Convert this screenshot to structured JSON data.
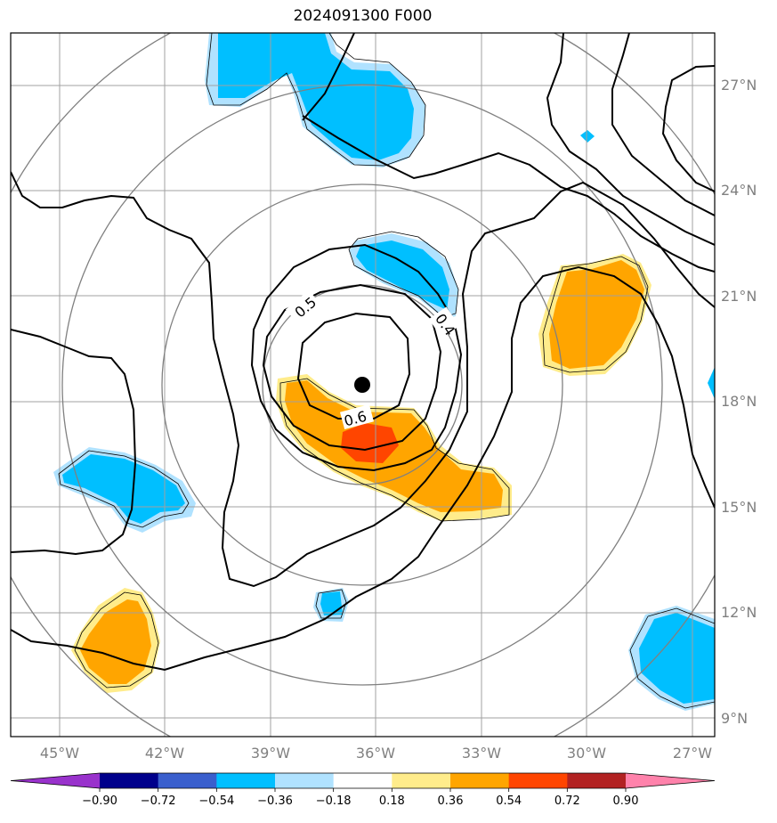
{
  "title": "2024091300 F000",
  "map": {
    "lat_labels": [
      "27°N",
      "24°N",
      "21°N",
      "18°N",
      "15°N",
      "12°N",
      "9°N"
    ],
    "lon_labels": [
      "45°W",
      "42°W",
      "39°W",
      "36°W",
      "33°W",
      "30°W",
      "27°W"
    ],
    "contour_labels": [
      "0.5",
      "0.4",
      "0.6"
    ],
    "center_marker": "storm-center"
  },
  "colorbar": {
    "ticks": [
      "−0.90",
      "−0.72",
      "−0.54",
      "−0.36",
      "−0.18",
      "0.18",
      "0.36",
      "0.54",
      "0.72",
      "0.90"
    ],
    "colors": [
      "#9932cc",
      "#00008b",
      "#3a5fcd",
      "#00bfff",
      "#b0e2ff",
      "#ffffff",
      "#ffec8b",
      "#ffa500",
      "#ff4500",
      "#b22222",
      "#ff82ab"
    ]
  },
  "palette": {
    "light_blue": "#b0e2ff",
    "blue": "#00bfff",
    "yellow": "#ffec8b",
    "orange": "#ffa500",
    "red": "#ff4500",
    "contour": "#000000",
    "grid": "#a0a0a0",
    "rings": "#808080"
  }
}
